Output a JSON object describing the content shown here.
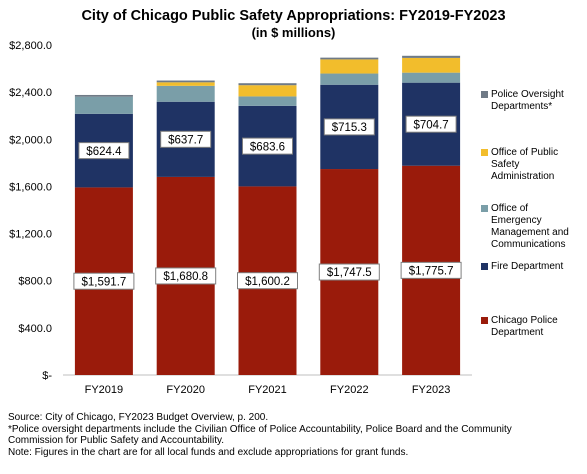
{
  "chart_data": {
    "type": "bar",
    "stacked": true,
    "title": "City of Chicago Public Safety Appropriations: FY2019-FY2023",
    "subtitle": "(in $ millions)",
    "categories": [
      "FY2019",
      "FY2020",
      "FY2021",
      "FY2022",
      "FY2023"
    ],
    "ylim": [
      0,
      2800
    ],
    "yticks": [
      0,
      400,
      800,
      1200,
      1600,
      2000,
      2400,
      2800
    ],
    "ytick_labels": [
      "$-",
      "$400.0",
      "$800.0",
      "$1,200.0",
      "$1,600.0",
      "$2,000.0",
      "$2,400.0",
      "$2,800.0"
    ],
    "grid": false,
    "legend_position": "right",
    "series": [
      {
        "name": "Chicago Police Department",
        "color": "#9a1b0b",
        "values": [
          1591.7,
          1680.8,
          1600.2,
          1747.5,
          1775.7
        ],
        "labels": [
          "$1,591.7",
          "$1,680.8",
          "$1,600.2",
          "$1,747.5",
          "$1,775.7"
        ]
      },
      {
        "name": "Fire Department",
        "color": "#1f3364",
        "values": [
          624.4,
          637.7,
          683.6,
          715.3,
          704.7
        ],
        "labels": [
          "$624.4",
          "$637.7",
          "$683.6",
          "$715.3",
          "$704.7"
        ]
      },
      {
        "name": "Office of Emergency Management and Communications",
        "color": "#7a9ea8",
        "values": [
          145,
          135,
          80,
          95,
          85
        ]
      },
      {
        "name": "Office of Public Safety Administration",
        "color": "#f2bd2c",
        "values": [
          0,
          30,
          95,
          120,
          125
        ]
      },
      {
        "name": "Police Oversight Departments*",
        "color": "#6f7a86",
        "values": [
          15,
          15,
          17,
          15,
          18
        ]
      }
    ],
    "legend": [
      {
        "label": "Police Oversight Departments*",
        "color": "#6f7a86"
      },
      {
        "label": "Office of Public Safety Administration",
        "color": "#f2bd2c"
      },
      {
        "label": "Office of Emergency Management and Communications",
        "color": "#7a9ea8"
      },
      {
        "label": "Fire Department",
        "color": "#1f3364"
      },
      {
        "label": "Chicago Police Department",
        "color": "#9a1b0b"
      }
    ]
  },
  "legend_text": {
    "oversight": "Police Oversight\nDepartments*",
    "opsa": "Office of Public\nSafety\nAdministration",
    "oemc": "Office of\nEmergency\nManagement and\nCommunications",
    "fire": "Fire Department",
    "police": "Chicago Police\nDepartment"
  },
  "notes": [
    "Source: City of Chicago, FY2023 Budget Overview, p. 200.",
    "*Police oversight departments include the Civilian  Office of Police Accountability, Police Board and the Community",
    "Commission  for Public Safety and Accountability.",
    "Note: Figures in the chart are for all local funds and exclude appropriations for grant funds."
  ]
}
